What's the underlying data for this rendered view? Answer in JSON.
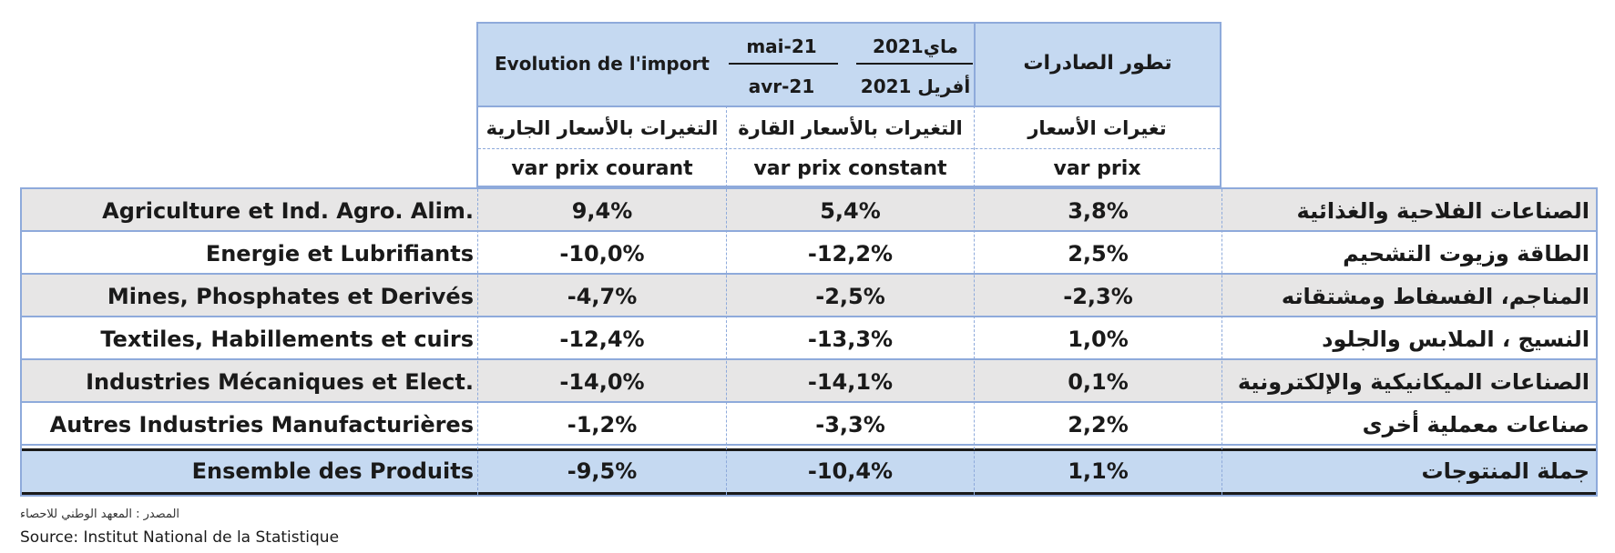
{
  "header": {
    "import_title": "Evolution de l'import",
    "date_fr_top": "mai-21",
    "date_fr_bottom": "avr-21",
    "date_ar_top": "ماي2021",
    "date_ar_bottom": "أفريل 2021",
    "exports_title": "تطور الصادرات",
    "col_current_ar": "التغيرات بالأسعار الجارية",
    "col_constant_ar": "التغيرات بالأسعار القارة",
    "col_prices_ar": "تغيرات الأسعار",
    "col_current_fr": "var prix courant",
    "col_constant_fr": "var prix constant",
    "col_prices_fr": "var prix"
  },
  "rows": [
    {
      "fr": "Agriculture et Ind. Agro. Alim.",
      "current": "9,4%",
      "constant": "5,4%",
      "prices": "3,8%",
      "ar": "الصناعات الفلاحية والغذائية"
    },
    {
      "fr": "Energie et Lubrifiants",
      "current": "-10,0%",
      "constant": "-12,2%",
      "prices": "2,5%",
      "ar": "الطاقة وزيوت التشحيم"
    },
    {
      "fr": "Mines, Phosphates et Derivés",
      "current": "-4,7%",
      "constant": "-2,5%",
      "prices": "-2,3%",
      "ar": "المناجم، الفسفاط ومشتقاته"
    },
    {
      "fr": "Textiles, Habillements et cuirs",
      "current": "-12,4%",
      "constant": "-13,3%",
      "prices": "1,0%",
      "ar": "النسيج ، الملابس والجلود"
    },
    {
      "fr": "Industries Mécaniques et Elect.",
      "current": "-14,0%",
      "constant": "-14,1%",
      "prices": "0,1%",
      "ar": "الصناعات الميكانيكية والإلكترونية"
    },
    {
      "fr": "Autres Industries Manufacturières",
      "current": "-1,2%",
      "constant": "-3,3%",
      "prices": "2,2%",
      "ar": "صناعات معملية أخرى"
    }
  ],
  "total": {
    "fr": "Ensemble des Produits",
    "current": "-9,5%",
    "constant": "-10,4%",
    "prices": "1,1%",
    "ar": "جملة المنتوجات"
  },
  "source": {
    "ar": "المصدر : المعهد الوطني للاحصاء",
    "fr": "Source: Institut National de la Statistique"
  },
  "colors": {
    "header_blue": "#c5d9f1",
    "row_gray": "#e7e6e6",
    "border_blue": "#8eaadb"
  }
}
